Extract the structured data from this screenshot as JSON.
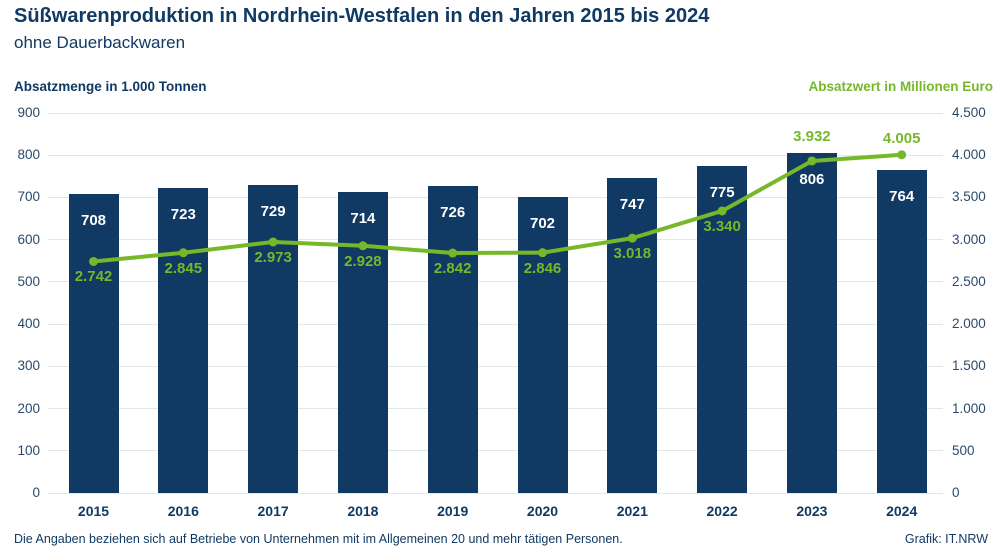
{
  "header": {
    "title": "Süßwarenproduktion in Nordrhein-Westfalen in den Jahren 2015 bis 2024",
    "subtitle": "ohne Dauerbackwaren"
  },
  "axes": {
    "left_title": "Absatzmenge in 1.000 Tonnen",
    "right_title": "Absatzwert in Millionen Euro"
  },
  "footer": {
    "note": "Die Angaben beziehen sich auf Betriebe von Unternehmen mit im Allgemeinen 20 und mehr tätigen Personen.",
    "credit": "Grafik: IT.NRW"
  },
  "colors": {
    "navy": "#103a63",
    "green": "#76b82a",
    "grid": "#e4e7ea",
    "bar_label": "#ffffff",
    "background": "#ffffff"
  },
  "chart_data": {
    "type": "bar",
    "title": "Süßwarenproduktion in Nordrhein-Westfalen in den Jahren 2015 bis 2024",
    "subtitle": "ohne Dauerbackwaren",
    "categories": [
      "2015",
      "2016",
      "2017",
      "2018",
      "2019",
      "2020",
      "2021",
      "2022",
      "2023",
      "2024"
    ],
    "series": [
      {
        "name": "Absatzmenge in 1.000 Tonnen",
        "type": "bar",
        "axis": "left",
        "values": [
          708,
          723,
          729,
          714,
          726,
          702,
          747,
          775,
          806,
          764
        ],
        "labels": [
          "708",
          "723",
          "729",
          "714",
          "726",
          "702",
          "747",
          "775",
          "806",
          "764"
        ]
      },
      {
        "name": "Absatzwert in Millionen Euro",
        "type": "line",
        "axis": "right",
        "values": [
          2742,
          2845,
          2973,
          2928,
          2842,
          2846,
          3018,
          3340,
          3932,
          4005
        ],
        "labels": [
          "2.742",
          "2.845",
          "2.973",
          "2.928",
          "2.842",
          "2.846",
          "3.018",
          "3.340",
          "3.932",
          "4.005"
        ]
      }
    ],
    "left_axis": {
      "label": "Absatzmenge in 1.000 Tonnen",
      "min": 0,
      "max": 900,
      "step": 100,
      "tick_labels": [
        "0",
        "100",
        "200",
        "300",
        "400",
        "500",
        "600",
        "700",
        "800",
        "900"
      ]
    },
    "right_axis": {
      "label": "Absatzwert in Millionen Euro",
      "min": 0,
      "max": 4500,
      "step": 500,
      "tick_labels": [
        "0",
        "500",
        "1.000",
        "1.500",
        "2.000",
        "2.500",
        "3.000",
        "3.500",
        "4.000",
        "4.500"
      ]
    },
    "grid": true,
    "legend_position": "none"
  }
}
